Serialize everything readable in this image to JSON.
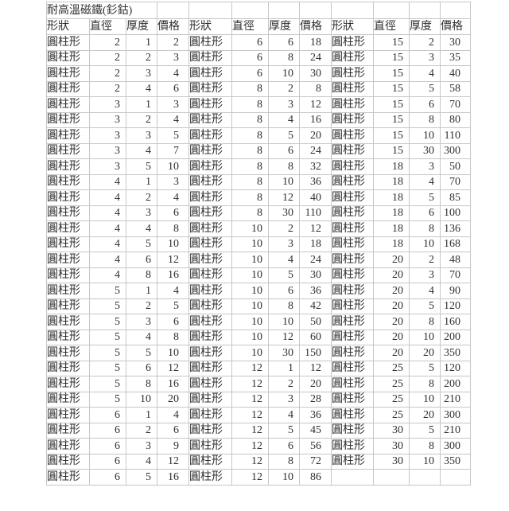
{
  "table": {
    "title": "耐高溫磁鐵(釤鈷)",
    "column_headers": [
      "形狀",
      "直徑",
      "厚度",
      "價格"
    ],
    "shape_value": "圓柱形",
    "visible_row_count": 29,
    "groups": [
      {
        "rows": [
          [
            2,
            1,
            2
          ],
          [
            2,
            2,
            3
          ],
          [
            2,
            3,
            4
          ],
          [
            2,
            4,
            6
          ],
          [
            3,
            1,
            3
          ],
          [
            3,
            2,
            4
          ],
          [
            3,
            3,
            5
          ],
          [
            3,
            4,
            7
          ],
          [
            3,
            5,
            10
          ],
          [
            4,
            1,
            3
          ],
          [
            4,
            2,
            4
          ],
          [
            4,
            3,
            6
          ],
          [
            4,
            4,
            8
          ],
          [
            4,
            5,
            10
          ],
          [
            4,
            6,
            12
          ],
          [
            4,
            8,
            16
          ],
          [
            5,
            1,
            4
          ],
          [
            5,
            2,
            5
          ],
          [
            5,
            3,
            6
          ],
          [
            5,
            4,
            8
          ],
          [
            5,
            5,
            10
          ],
          [
            5,
            6,
            12
          ],
          [
            5,
            8,
            16
          ],
          [
            5,
            10,
            20
          ],
          [
            6,
            1,
            4
          ],
          [
            6,
            2,
            6
          ],
          [
            6,
            3,
            9
          ],
          [
            6,
            4,
            12
          ],
          [
            6,
            5,
            16
          ]
        ]
      },
      {
        "rows": [
          [
            6,
            6,
            18
          ],
          [
            6,
            8,
            24
          ],
          [
            6,
            10,
            30
          ],
          [
            8,
            2,
            8
          ],
          [
            8,
            3,
            12
          ],
          [
            8,
            4,
            16
          ],
          [
            8,
            5,
            20
          ],
          [
            8,
            6,
            24
          ],
          [
            8,
            8,
            32
          ],
          [
            8,
            10,
            36
          ],
          [
            8,
            12,
            40
          ],
          [
            8,
            30,
            110
          ],
          [
            10,
            2,
            12
          ],
          [
            10,
            3,
            18
          ],
          [
            10,
            4,
            24
          ],
          [
            10,
            5,
            30
          ],
          [
            10,
            6,
            36
          ],
          [
            10,
            8,
            42
          ],
          [
            10,
            10,
            50
          ],
          [
            10,
            12,
            60
          ],
          [
            10,
            30,
            150
          ],
          [
            12,
            1,
            12
          ],
          [
            12,
            2,
            20
          ],
          [
            12,
            3,
            28
          ],
          [
            12,
            4,
            36
          ],
          [
            12,
            5,
            45
          ],
          [
            12,
            6,
            56
          ],
          [
            12,
            8,
            72
          ],
          [
            12,
            10,
            86
          ]
        ]
      },
      {
        "rows": [
          [
            15,
            2,
            30
          ],
          [
            15,
            3,
            35
          ],
          [
            15,
            4,
            40
          ],
          [
            15,
            5,
            58
          ],
          [
            15,
            6,
            70
          ],
          [
            15,
            8,
            80
          ],
          [
            15,
            10,
            110
          ],
          [
            15,
            30,
            300
          ],
          [
            18,
            3,
            50
          ],
          [
            18,
            4,
            70
          ],
          [
            18,
            5,
            85
          ],
          [
            18,
            6,
            100
          ],
          [
            18,
            8,
            136
          ],
          [
            18,
            10,
            168
          ],
          [
            20,
            2,
            48
          ],
          [
            20,
            3,
            70
          ],
          [
            20,
            4,
            90
          ],
          [
            20,
            5,
            120
          ],
          [
            20,
            8,
            160
          ],
          [
            20,
            10,
            200
          ],
          [
            20,
            20,
            350
          ],
          [
            25,
            5,
            120
          ],
          [
            25,
            8,
            200
          ],
          [
            25,
            10,
            210
          ],
          [
            25,
            20,
            300
          ],
          [
            30,
            5,
            210
          ],
          [
            30,
            8,
            300
          ],
          [
            30,
            10,
            350
          ]
        ]
      }
    ]
  },
  "colors": {
    "gridline": "#c6c6c6",
    "text": "#303030",
    "background": "#ffffff"
  }
}
